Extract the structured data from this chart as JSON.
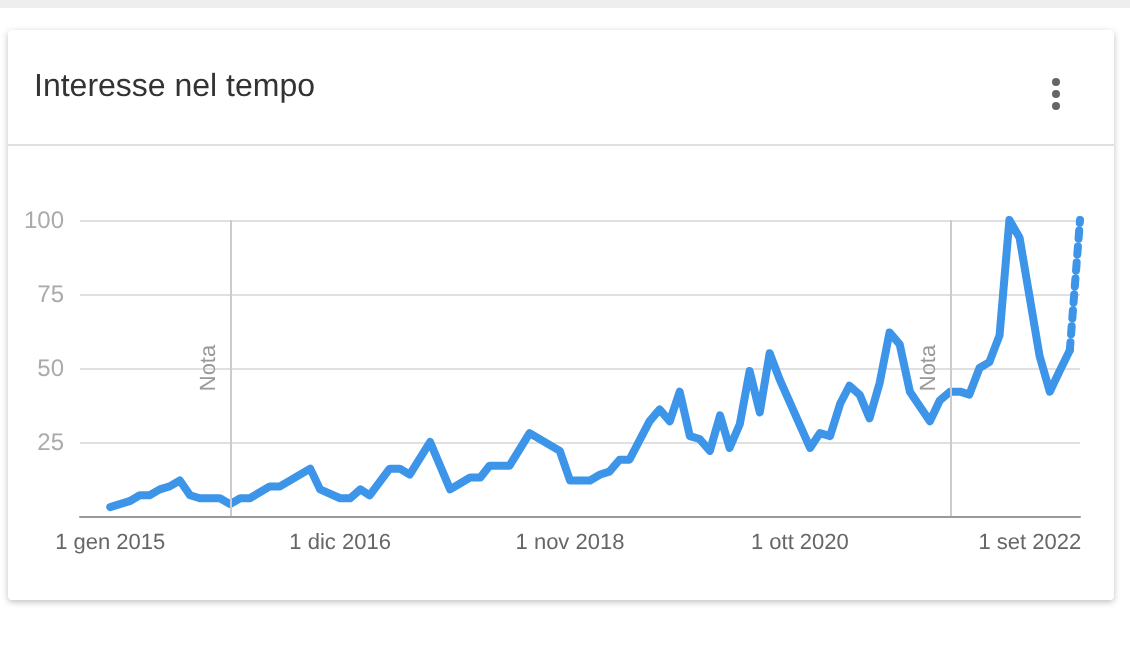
{
  "chart_data": {
    "type": "line",
    "title": "Interesse nel tempo",
    "marker": "none",
    "grid": "y",
    "xlim": [
      "2014-10",
      "2023-02"
    ],
    "xticks": [
      {
        "value": "2015-01-01",
        "label": "1 gen 2015"
      },
      {
        "value": "2016-12-01",
        "label": "1 dic 2016"
      },
      {
        "value": "2018-11-01",
        "label": "1 nov 2018"
      },
      {
        "value": "2020-10-01",
        "label": "1 ott 2020"
      },
      {
        "value": "2022-09-01",
        "label": "1 set 2022"
      }
    ],
    "ylim": [
      0,
      100
    ],
    "yticks": [
      25,
      50,
      75,
      100
    ],
    "ref_lines": [
      {
        "axis": "x",
        "value": "2016-01",
        "label": "Nota",
        "color": "#cccccc"
      },
      {
        "axis": "x",
        "value": "2022-01",
        "label": "Nota",
        "color": "#cccccc"
      }
    ],
    "series": [
      {
        "color": "#3d95ea",
        "line_style": "solid",
        "x": [
          "2015-01",
          "2015-03",
          "2015-04",
          "2015-05",
          "2015-06",
          "2015-07",
          "2015-08",
          "2015-09",
          "2015-10",
          "2015-12",
          "2016-01",
          "2016-02",
          "2016-03",
          "2016-05",
          "2016-06",
          "2016-09",
          "2016-10",
          "2016-12",
          "2017-01",
          "2017-02",
          "2017-03",
          "2017-05",
          "2017-06",
          "2017-07",
          "2017-09",
          "2017-11",
          "2018-01",
          "2018-02",
          "2018-03",
          "2018-05",
          "2018-07",
          "2018-10",
          "2018-11",
          "2018-12",
          "2019-01",
          "2019-02",
          "2019-03",
          "2019-04",
          "2019-05",
          "2019-07",
          "2019-08",
          "2019-09",
          "2019-10",
          "2019-11",
          "2019-12",
          "2020-01",
          "2020-02",
          "2020-03",
          "2020-04",
          "2020-05",
          "2020-06",
          "2020-07",
          "2020-08",
          "2020-11",
          "2020-12",
          "2021-01",
          "2021-02",
          "2021-03",
          "2021-04",
          "2021-05",
          "2021-06",
          "2021-07",
          "2021-08",
          "2021-09",
          "2021-11",
          "2021-12",
          "2022-01",
          "2022-02",
          "2022-03",
          "2022-04",
          "2022-05",
          "2022-06",
          "2022-07",
          "2022-08",
          "2022-10",
          "2022-11",
          "2022-12",
          "2023-01"
        ],
        "values": [
          3,
          5,
          7,
          7,
          9,
          10,
          12,
          7,
          6,
          6,
          4,
          6,
          6,
          10,
          10,
          16,
          9,
          6,
          6,
          9,
          7,
          16,
          16,
          14,
          25,
          9,
          13,
          13,
          17,
          17,
          28,
          22,
          12,
          12,
          12,
          14,
          15,
          19,
          19,
          32,
          36,
          32,
          42,
          27,
          26,
          22,
          34,
          23,
          31,
          49,
          35,
          55,
          46,
          23,
          28,
          27,
          38,
          44,
          41,
          33,
          45,
          62,
          58,
          42,
          32,
          39,
          42,
          42,
          41,
          50,
          52,
          61,
          100,
          94,
          54,
          42,
          49,
          56
        ]
      },
      {
        "color": "#3d95ea",
        "line_style": "dotted",
        "x": [
          "2023-01",
          "2023-02"
        ],
        "values": [
          56,
          100
        ]
      }
    ]
  }
}
